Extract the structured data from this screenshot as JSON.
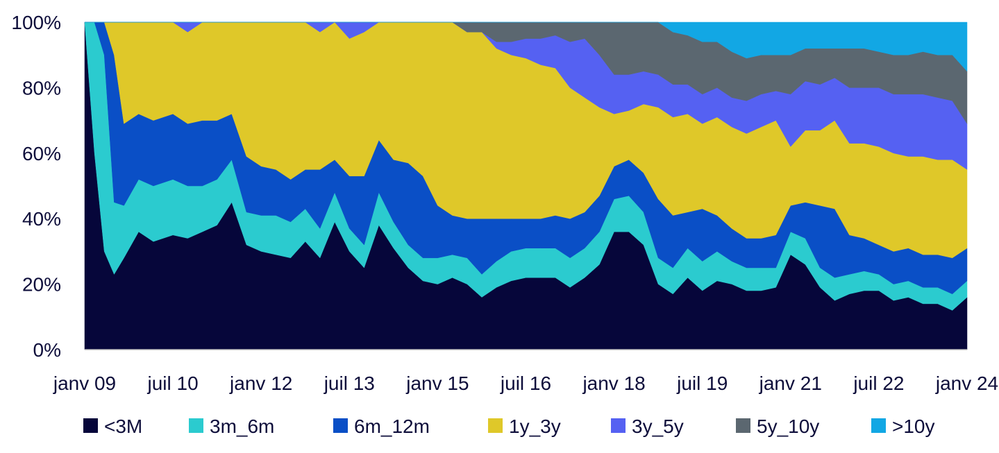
{
  "chart_data": {
    "type": "area",
    "stacked": true,
    "normalized": true,
    "title": "",
    "xlabel": "",
    "ylabel": "",
    "x_ticks": [
      "janv 09",
      "juil 10",
      "janv 12",
      "juil 13",
      "janv 15",
      "juil 16",
      "janv 18",
      "juil 19",
      "janv 21",
      "juil 22",
      "janv 24"
    ],
    "y_ticks": [
      "0%",
      "20%",
      "40%",
      "60%",
      "80%",
      "100%"
    ],
    "ylim": [
      0,
      100
    ],
    "legend_position": "bottom",
    "grid": false,
    "x": [
      "2009-01",
      "2009-03",
      "2009-05",
      "2009-07",
      "2009-09",
      "2009-12",
      "2010-03",
      "2010-07",
      "2010-10",
      "2011-01",
      "2011-04",
      "2011-07",
      "2011-10",
      "2012-01",
      "2012-04",
      "2012-07",
      "2012-10",
      "2013-01",
      "2013-04",
      "2013-07",
      "2013-10",
      "2014-01",
      "2014-04",
      "2014-07",
      "2014-10",
      "2015-01",
      "2015-04",
      "2015-07",
      "2015-10",
      "2016-01",
      "2016-04",
      "2016-07",
      "2016-10",
      "2017-01",
      "2017-04",
      "2017-07",
      "2017-10",
      "2018-01",
      "2018-04",
      "2018-07",
      "2018-10",
      "2019-01",
      "2019-04",
      "2019-07",
      "2019-10",
      "2020-01",
      "2020-04",
      "2020-07",
      "2020-10",
      "2021-01",
      "2021-04",
      "2021-07",
      "2021-10",
      "2022-01",
      "2022-04",
      "2022-07",
      "2022-10",
      "2023-01",
      "2023-04",
      "2023-07",
      "2023-10",
      "2024-01"
    ],
    "series": [
      {
        "name": "<3M",
        "color": "#06063a",
        "values": [
          100,
          60,
          30,
          23,
          28,
          36,
          33,
          35,
          34,
          36,
          38,
          45,
          32,
          30,
          29,
          28,
          33,
          28,
          39,
          30,
          25,
          38,
          31,
          25,
          21,
          20,
          22,
          20,
          16,
          19,
          21,
          22,
          22,
          22,
          19,
          22,
          26,
          36,
          36,
          32,
          20,
          17,
          22,
          18,
          21,
          20,
          18,
          18,
          19,
          29,
          26,
          19,
          15,
          17,
          18,
          18,
          15,
          16,
          14,
          14,
          12,
          16
        ]
      },
      {
        "name": "3m_6m",
        "color": "#2bcbcf",
        "values": [
          0,
          40,
          60,
          22,
          16,
          16,
          17,
          17,
          16,
          14,
          14,
          13,
          10,
          11,
          12,
          11,
          10,
          9,
          9,
          7,
          7,
          10,
          8,
          7,
          7,
          8,
          7,
          8,
          7,
          8,
          9,
          9,
          9,
          9,
          9,
          9,
          10,
          10,
          11,
          10,
          8,
          8,
          9,
          9,
          9,
          7,
          7,
          7,
          6,
          7,
          8,
          6,
          7,
          6,
          6,
          5,
          5,
          5,
          5,
          5,
          5,
          5
        ]
      },
      {
        "name": "6m_12m",
        "color": "#0a4fc6",
        "values": [
          0,
          0,
          10,
          45,
          25,
          20,
          20,
          20,
          19,
          20,
          18,
          14,
          17,
          15,
          14,
          13,
          12,
          18,
          10,
          16,
          21,
          16,
          19,
          25,
          25,
          16,
          12,
          12,
          17,
          13,
          10,
          9,
          9,
          10,
          12,
          11,
          11,
          10,
          11,
          12,
          18,
          16,
          11,
          16,
          11,
          10,
          9,
          9,
          10,
          8,
          11,
          19,
          21,
          12,
          10,
          9,
          10,
          10,
          10,
          10,
          11,
          10
        ]
      },
      {
        "name": "1y_3y",
        "color": "#dfc829",
        "values": [
          0,
          0,
          0,
          10,
          31,
          28,
          30,
          28,
          28,
          30,
          30,
          28,
          41,
          44,
          45,
          48,
          45,
          42,
          42,
          42,
          44,
          36,
          42,
          43,
          47,
          56,
          59,
          57,
          57,
          52,
          50,
          49,
          47,
          45,
          40,
          35,
          27,
          16,
          15,
          21,
          28,
          30,
          30,
          26,
          30,
          31,
          32,
          34,
          35,
          18,
          22,
          23,
          27,
          28,
          29,
          30,
          30,
          28,
          30,
          29,
          30,
          24
        ]
      },
      {
        "name": "3y_5y",
        "color": "#5561f2",
        "values": [
          0,
          0,
          0,
          0,
          0,
          0,
          0,
          0,
          3,
          0,
          0,
          0,
          0,
          0,
          0,
          0,
          0,
          3,
          0,
          5,
          3,
          0,
          0,
          0,
          0,
          0,
          0,
          0,
          0,
          2,
          4,
          6,
          8,
          10,
          14,
          18,
          16,
          12,
          11,
          10,
          10,
          10,
          9,
          9,
          9,
          9,
          10,
          10,
          9,
          16,
          15,
          14,
          13,
          17,
          17,
          18,
          18,
          19,
          19,
          19,
          18,
          14
        ]
      },
      {
        "name": "5y_10y",
        "color": "#5b6770",
        "values": [
          0,
          0,
          0,
          0,
          0,
          0,
          0,
          0,
          0,
          0,
          0,
          0,
          0,
          0,
          0,
          0,
          0,
          0,
          0,
          0,
          0,
          0,
          0,
          0,
          0,
          0,
          0,
          3,
          3,
          6,
          6,
          5,
          5,
          4,
          6,
          5,
          10,
          16,
          16,
          15,
          16,
          16,
          15,
          16,
          14,
          14,
          13,
          12,
          11,
          12,
          10,
          11,
          9,
          12,
          12,
          11,
          12,
          12,
          13,
          13,
          14,
          16
        ]
      },
      {
        "name": ">10y",
        "color": "#12a7e4",
        "values": [
          0,
          0,
          0,
          0,
          0,
          0,
          0,
          0,
          0,
          0,
          0,
          0,
          0,
          0,
          0,
          0,
          0,
          0,
          0,
          0,
          0,
          0,
          0,
          0,
          0,
          0,
          0,
          0,
          0,
          0,
          0,
          0,
          0,
          0,
          0,
          0,
          0,
          0,
          0,
          0,
          0,
          3,
          4,
          6,
          6,
          9,
          11,
          10,
          10,
          10,
          8,
          8,
          8,
          8,
          8,
          9,
          10,
          10,
          10,
          11,
          10,
          15
        ]
      }
    ]
  }
}
